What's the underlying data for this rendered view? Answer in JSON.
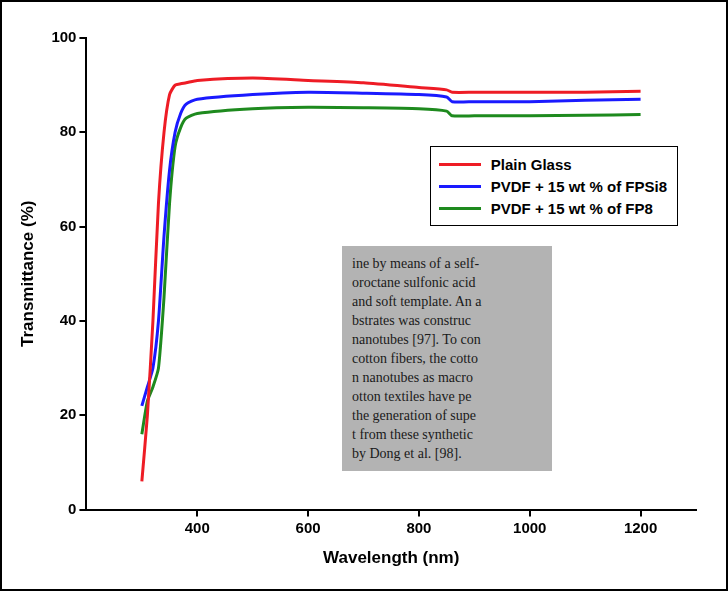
{
  "chart_data": {
    "type": "line",
    "x_label": "Wavelength (nm)",
    "y_label": "Transmittance (%)",
    "x": [
      300,
      310,
      320,
      330,
      340,
      350,
      360,
      370,
      380,
      400,
      500,
      600,
      700,
      800,
      850,
      860,
      900,
      1000,
      1100,
      1200
    ],
    "series": [
      {
        "name": "Plain Glass",
        "color": "#ee1c25",
        "values": [
          6,
          20,
          40,
          65,
          80,
          88,
          90,
          90.3,
          90.5,
          91,
          91.5,
          91,
          90.5,
          89.5,
          89,
          88.5,
          88.5,
          88.5,
          88.5,
          88.7
        ]
      },
      {
        "name": "PVDF + 15 wt % of FPSi8",
        "color": "#1a1aff",
        "values": [
          22,
          26,
          30,
          40,
          58,
          72,
          80,
          84,
          86,
          87,
          88,
          88.5,
          88.3,
          88,
          87.5,
          86.5,
          86.5,
          86.5,
          86.8,
          87
        ]
      },
      {
        "name": "PVDF + 15 wt % of FP8",
        "color": "#1e8a1e",
        "values": [
          16,
          23,
          26,
          30,
          45,
          65,
          77,
          81,
          83,
          84,
          85,
          85.3,
          85.2,
          85,
          84.5,
          83.5,
          83.5,
          83.5,
          83.6,
          83.8
        ]
      }
    ],
    "xlim": [
      200,
      1300
    ],
    "xticks": [
      400,
      600,
      800,
      1000,
      1200
    ],
    "ylim": [
      0,
      100
    ],
    "yticks": [
      0,
      20,
      40,
      60,
      80,
      100
    ],
    "grid": false,
    "legend": "upper right",
    "annotations": [
      "ine by means of a self-",
      "oroctane sulfonic acid",
      "and soft template. An a",
      "bstrates was construc",
      "nanotubes [97]. To con",
      "cotton fibers, the cotto",
      "n nanotubes as macro",
      "otton textiles have pe",
      "the generation of supe",
      "t from these synthetic",
      "by Dong et al. [98]."
    ]
  }
}
